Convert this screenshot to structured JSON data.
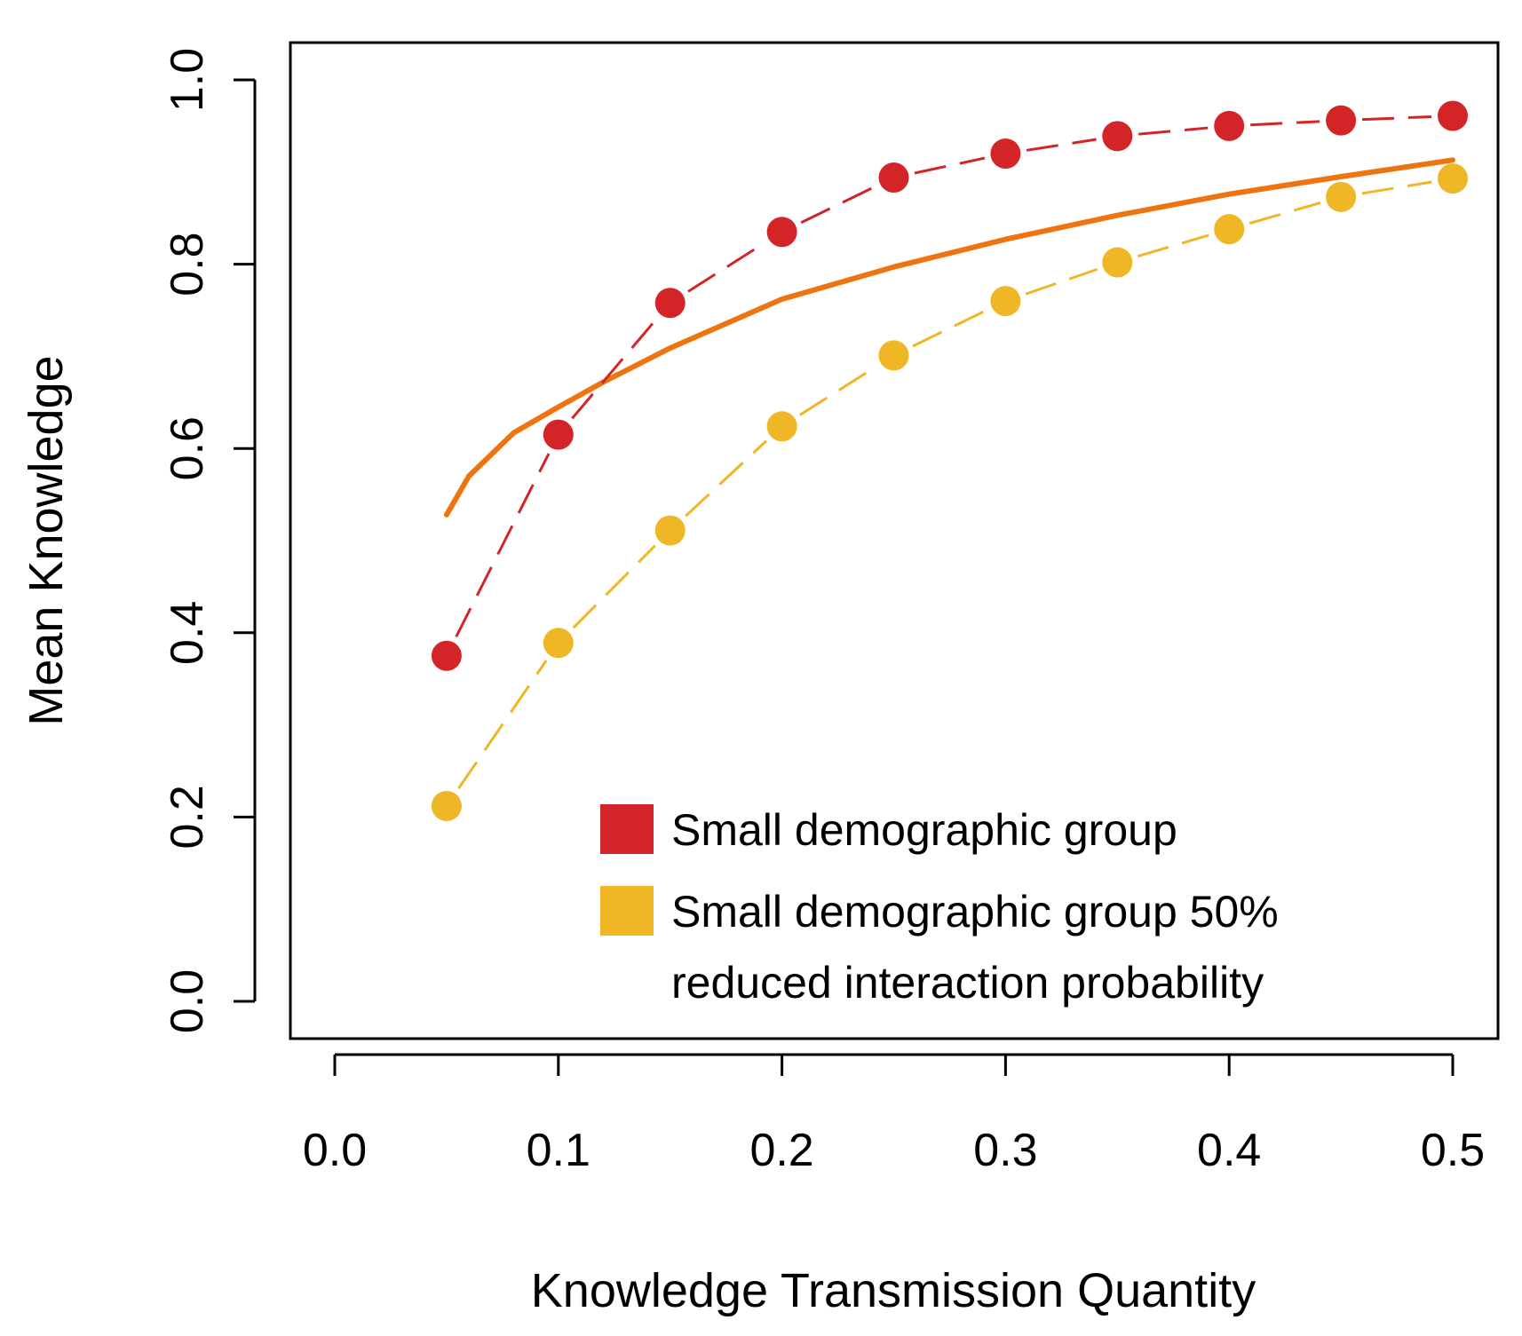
{
  "chart_data": {
    "type": "line",
    "title": "",
    "xlabel": "Knowledge Transmission Quantity",
    "ylabel": "Mean Knowledge",
    "xlim": [
      0.0,
      0.5
    ],
    "ylim": [
      0.0,
      1.0
    ],
    "xticks": [
      "0.0",
      "0.1",
      "0.2",
      "0.3",
      "0.4",
      "0.5"
    ],
    "yticks": [
      "0.0",
      "0.2",
      "0.4",
      "0.6",
      "0.8",
      "1.0"
    ],
    "grid": false,
    "legend_position": "bottom-right",
    "x": [
      0.05,
      0.1,
      0.15,
      0.2,
      0.25,
      0.3,
      0.35,
      0.4,
      0.45,
      0.5
    ],
    "series": [
      {
        "name": "Small demographic group",
        "color": "#D32528",
        "style": "dashed-with-points",
        "values": [
          0.375,
          0.615,
          0.758,
          0.835,
          0.894,
          0.92,
          0.939,
          0.95,
          0.956,
          0.961
        ]
      },
      {
        "name": "Small demographic group 50% reduced interaction probability",
        "color": "#EFB626",
        "style": "dashed-with-points",
        "values": [
          0.212,
          0.389,
          0.511,
          0.624,
          0.701,
          0.76,
          0.802,
          0.838,
          0.873,
          0.893
        ]
      },
      {
        "color": "#EE7410",
        "style": "solid-curve",
        "x": [
          0.05,
          0.06,
          0.08,
          0.1,
          0.12,
          0.15,
          0.2,
          0.25,
          0.3,
          0.35,
          0.4,
          0.45,
          0.5
        ],
        "values": [
          0.528,
          0.57,
          0.617,
          0.645,
          0.672,
          0.709,
          0.762,
          0.797,
          0.827,
          0.853,
          0.876,
          0.895,
          0.913
        ]
      }
    ],
    "legend": {
      "entries": [
        {
          "color": "#D32528",
          "lines": [
            "Small demographic group"
          ]
        },
        {
          "color": "#EFB626",
          "lines": [
            "Small demographic group 50%",
            "reduced interaction probability"
          ]
        }
      ]
    }
  }
}
